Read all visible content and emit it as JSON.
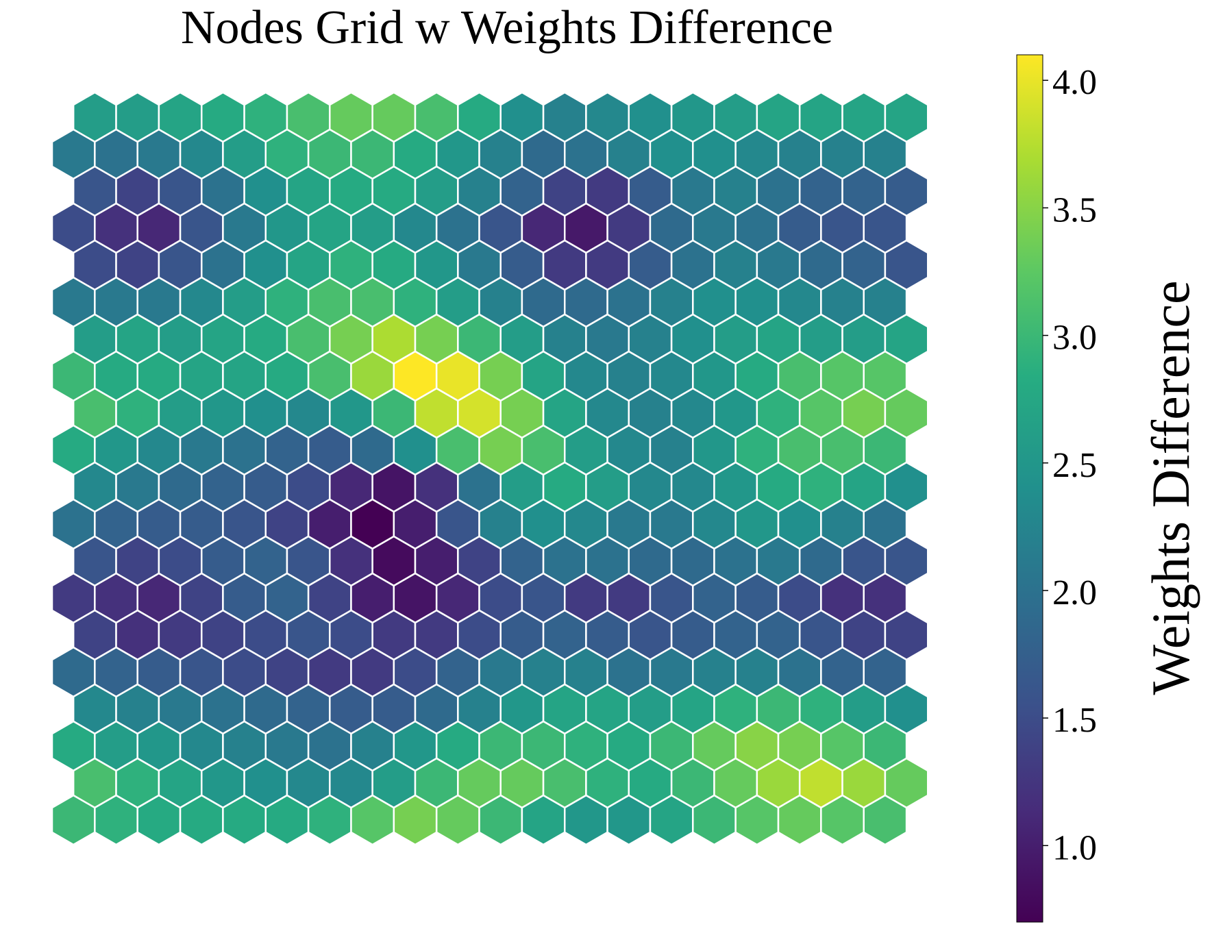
{
  "chart_data": {
    "type": "heatmap",
    "title": "Nodes Grid w Weights Difference",
    "colorbar_label": "Weights Difference",
    "colormap": "viridis",
    "colorbar_range": [
      0.7,
      4.1
    ],
    "colorbar_ticks": [
      1.0,
      1.5,
      2.0,
      2.5,
      3.0,
      3.5,
      4.0
    ],
    "colorbar_tick_labels": [
      "1.0",
      "1.5",
      "2.0",
      "2.5",
      "3.0",
      "3.5",
      "4.0"
    ],
    "grid": "hexagonal",
    "hex_edge_color": "#ffffff",
    "rows_top_to_bottom": [
      [
        2.6,
        2.6,
        2.7,
        2.8,
        2.9,
        3.1,
        3.3,
        3.3,
        3.1,
        2.8,
        2.4,
        2.2,
        2.3,
        2.4,
        2.5,
        2.6,
        2.7,
        2.7,
        2.7,
        2.7
      ],
      [
        2.1,
        2.0,
        2.1,
        2.3,
        2.6,
        2.9,
        3.0,
        3.0,
        2.8,
        2.5,
        2.2,
        1.9,
        2.0,
        2.2,
        2.4,
        2.4,
        2.3,
        2.2,
        2.2,
        2.2
      ],
      [
        1.6,
        1.4,
        1.6,
        2.0,
        2.4,
        2.7,
        2.8,
        2.8,
        2.6,
        2.2,
        1.8,
        1.4,
        1.3,
        1.7,
        2.1,
        2.2,
        2.0,
        1.8,
        1.8,
        1.7
      ],
      [
        1.5,
        1.2,
        1.1,
        1.6,
        2.1,
        2.5,
        2.7,
        2.6,
        2.3,
        2.0,
        1.6,
        1.1,
        0.95,
        1.3,
        1.9,
        2.1,
        2.0,
        1.7,
        1.6,
        1.6
      ],
      [
        1.5,
        1.4,
        1.6,
        2.0,
        2.4,
        2.7,
        2.9,
        2.8,
        2.5,
        2.1,
        1.7,
        1.3,
        1.3,
        1.7,
        2.0,
        2.2,
        2.1,
        1.9,
        1.8,
        1.6
      ],
      [
        2.1,
        2.1,
        2.1,
        2.3,
        2.6,
        2.9,
        3.1,
        3.1,
        2.9,
        2.6,
        2.2,
        1.9,
        1.9,
        2.0,
        2.2,
        2.4,
        2.4,
        2.3,
        2.2,
        2.2
      ],
      [
        2.6,
        2.7,
        2.6,
        2.7,
        2.8,
        3.1,
        3.4,
        3.7,
        3.4,
        3.0,
        2.6,
        2.2,
        2.1,
        2.2,
        2.4,
        2.6,
        2.7,
        2.6,
        2.6,
        2.7
      ],
      [
        3.0,
        2.8,
        2.8,
        2.7,
        2.7,
        2.8,
        3.1,
        3.6,
        4.1,
        4.0,
        3.4,
        2.7,
        2.3,
        2.2,
        2.3,
        2.5,
        2.8,
        3.1,
        3.2,
        3.2
      ],
      [
        3.1,
        2.9,
        2.6,
        2.5,
        2.4,
        2.3,
        2.5,
        3.0,
        3.8,
        3.9,
        3.4,
        2.7,
        2.3,
        2.2,
        2.3,
        2.5,
        2.9,
        3.2,
        3.4,
        3.3
      ],
      [
        2.8,
        2.5,
        2.3,
        2.1,
        2.0,
        1.8,
        1.7,
        1.9,
        2.4,
        3.1,
        3.4,
        3.1,
        2.6,
        2.3,
        2.2,
        2.5,
        2.9,
        3.1,
        3.1,
        3.0
      ],
      [
        2.3,
        2.1,
        1.9,
        1.8,
        1.7,
        1.5,
        1.1,
        0.9,
        1.2,
        2.0,
        2.6,
        2.8,
        2.6,
        2.3,
        2.3,
        2.5,
        2.8,
        2.9,
        2.7,
        2.4
      ],
      [
        2.0,
        1.8,
        1.7,
        1.7,
        1.6,
        1.4,
        1.0,
        0.7,
        1.0,
        1.6,
        2.2,
        2.4,
        2.3,
        2.1,
        2.1,
        2.3,
        2.5,
        2.4,
        2.2,
        2.0
      ],
      [
        1.6,
        1.4,
        1.5,
        1.7,
        1.8,
        1.6,
        1.2,
        0.8,
        1.0,
        1.4,
        1.8,
        2.0,
        2.0,
        1.9,
        1.9,
        2.0,
        2.1,
        1.9,
        1.6,
        1.6
      ],
      [
        1.3,
        1.2,
        1.1,
        1.4,
        1.7,
        1.8,
        1.4,
        1.0,
        0.9,
        1.1,
        1.5,
        1.6,
        1.3,
        1.3,
        1.6,
        1.8,
        1.7,
        1.5,
        1.2,
        1.2
      ],
      [
        1.4,
        1.2,
        1.3,
        1.4,
        1.5,
        1.6,
        1.5,
        1.3,
        1.3,
        1.5,
        1.7,
        1.8,
        1.7,
        1.6,
        1.7,
        1.8,
        1.8,
        1.6,
        1.4,
        1.4
      ],
      [
        1.9,
        1.8,
        1.7,
        1.6,
        1.5,
        1.4,
        1.3,
        1.3,
        1.5,
        1.8,
        2.1,
        2.2,
        2.2,
        2.0,
        2.1,
        2.2,
        2.2,
        2.0,
        1.8,
        1.8
      ],
      [
        2.3,
        2.2,
        2.1,
        2.0,
        1.9,
        1.8,
        1.7,
        1.7,
        1.9,
        2.2,
        2.5,
        2.7,
        2.7,
        2.6,
        2.7,
        2.9,
        3.0,
        2.9,
        2.6,
        2.4
      ],
      [
        2.8,
        2.6,
        2.5,
        2.3,
        2.2,
        2.1,
        2.0,
        2.2,
        2.5,
        2.8,
        3.0,
        3.0,
        2.9,
        2.8,
        3.0,
        3.3,
        3.5,
        3.4,
        3.2,
        3.0
      ],
      [
        3.1,
        2.9,
        2.7,
        2.5,
        2.4,
        2.3,
        2.3,
        2.6,
        3.0,
        3.3,
        3.3,
        3.1,
        2.9,
        2.8,
        3.0,
        3.3,
        3.6,
        3.8,
        3.6,
        3.3
      ],
      [
        3.0,
        2.9,
        2.8,
        2.8,
        2.8,
        2.8,
        2.9,
        3.2,
        3.4,
        3.3,
        3.0,
        2.7,
        2.5,
        2.5,
        2.7,
        3.0,
        3.2,
        3.3,
        3.2,
        3.1
      ]
    ]
  }
}
